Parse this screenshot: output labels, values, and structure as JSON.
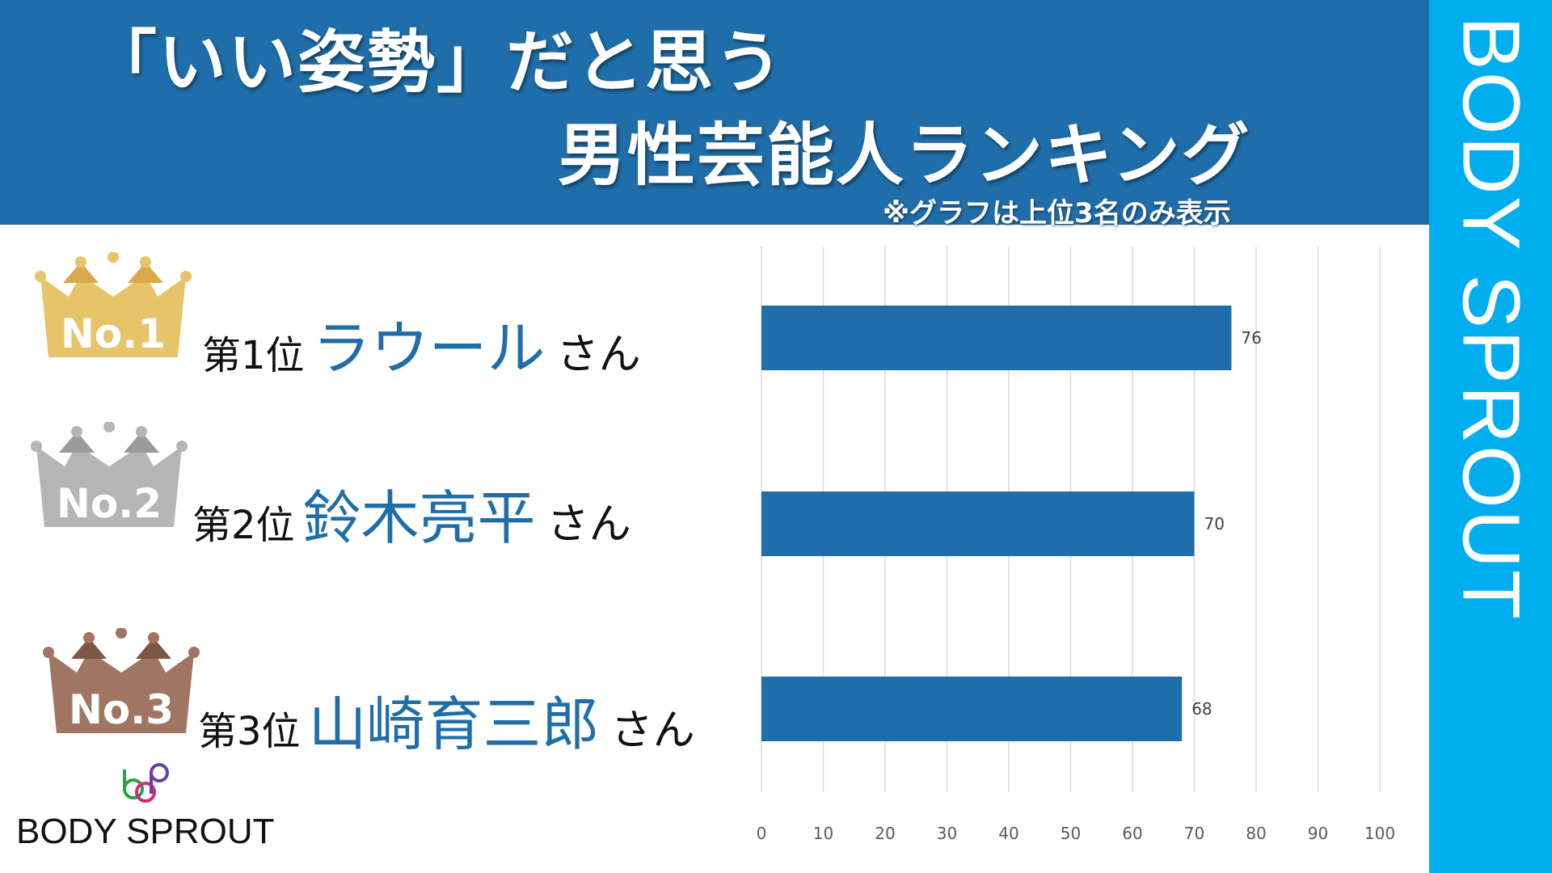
{
  "header": {
    "title_line1": "「いい姿勢」だと思う",
    "title_line2": "男性芸能人ランキング",
    "note": "※グラフは上位3名のみ表示"
  },
  "side_band": {
    "text": "BODY SPROUT"
  },
  "logo": {
    "text": "BODY SPROUT"
  },
  "colors": {
    "header_bg": "#1f6ea9",
    "side_band": "#00aeef",
    "bar": "#1f6ea9",
    "name_text": "#1f6ea9",
    "crown_gold": "#e6c46a",
    "crown_silver": "#b5b5b5",
    "crown_bronze": "#a07563"
  },
  "rankings": [
    {
      "badge": "No.1",
      "label": "第1位",
      "name": "ラウール",
      "suffix": "さん",
      "crown_color": "#e6c46a",
      "crown_dark": "#d9a94e"
    },
    {
      "badge": "No.2",
      "label": "第2位",
      "name": "鈴木亮平",
      "suffix": "さん",
      "crown_color": "#b5b5b5",
      "crown_dark": "#9a9a9a"
    },
    {
      "badge": "No.3",
      "label": "第3位",
      "name": "山崎育三郎",
      "suffix": "さん",
      "crown_color": "#a07563",
      "crown_dark": "#7e5646"
    }
  ],
  "chart_data": {
    "type": "bar",
    "orientation": "horizontal",
    "categories": [
      "ラウール",
      "鈴木亮平",
      "山崎育三郎"
    ],
    "values": [
      76,
      70,
      68
    ],
    "data_labels": [
      "76",
      "70",
      "68"
    ],
    "xlim": [
      0,
      100
    ],
    "xticks": [
      0,
      10,
      20,
      30,
      40,
      50,
      60,
      70,
      80,
      90,
      100
    ],
    "grid": true
  }
}
